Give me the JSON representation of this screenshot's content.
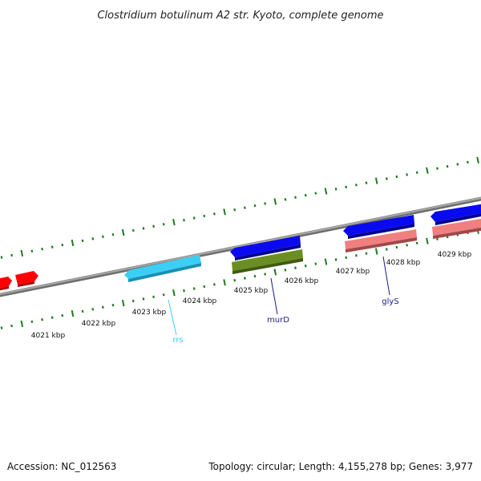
{
  "title": "Clostridium botulinum A2 str. Kyoto, complete genome",
  "footer": {
    "accession": "Accession: NC_012563",
    "summary": "Topology: circular; Length: 4,155,278 bp; Genes: 3,977"
  },
  "colors": {
    "backbone": "#8c8c8c",
    "tick": "#1f7a1f",
    "gene_red": "#ff0000",
    "gene_cyan": "#3ccff5",
    "gene_blue": "#0a0af0",
    "gene_olive": "#6b8e23",
    "gene_pink": "#f08080",
    "label_rrs": "#3ccff5",
    "label_navy": "#1a1a8c"
  },
  "ruler": {
    "labels": [
      "4021 kbp",
      "4022 kbp",
      "4023 kbp",
      "4024 kbp",
      "4025 kbp",
      "4026 kbp",
      "4027 kbp",
      "4028 kbp",
      "4029 kbp"
    ]
  },
  "gene_labels": {
    "rrs": "rrs",
    "murD": "murD",
    "glyS": "glyS"
  }
}
